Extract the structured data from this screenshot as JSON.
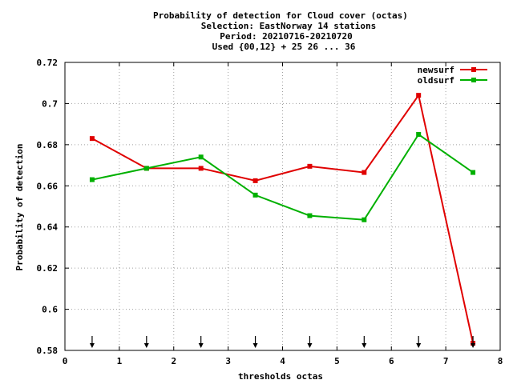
{
  "chart_data": {
    "type": "line",
    "title_lines": [
      "Probability of detection  for Cloud cover (octas)",
      "Selection: EastNorway     14 stations",
      "Period: 20210716-20210720",
      "Used {00,12} + 25 26 ... 36"
    ],
    "xlabel": "thresholds octas",
    "ylabel": "Probability of detection",
    "xlim": [
      0,
      8
    ],
    "ylim": [
      0.58,
      0.72
    ],
    "xticks": [
      "0",
      "1",
      "2",
      "3",
      "4",
      "5",
      "6",
      "7",
      "8"
    ],
    "yticks": [
      "0.58",
      "0.6",
      "0.62",
      "0.64",
      "0.66",
      "0.68",
      "0.7",
      "0.72"
    ],
    "grid": true,
    "legend_position": "top-right",
    "x": [
      0.5,
      1.5,
      2.5,
      3.5,
      4.5,
      5.5,
      6.5,
      7.5
    ],
    "series": [
      {
        "name": "newsurf",
        "color": "#e00000",
        "values": [
          0.683,
          0.6685,
          0.6685,
          0.6625,
          0.6695,
          0.6665,
          0.704,
          0.5835
        ]
      },
      {
        "name": "oldsurf",
        "color": "#00b000",
        "values": [
          0.663,
          0.6685,
          0.674,
          0.6555,
          0.6455,
          0.6435,
          0.685,
          0.6665
        ]
      }
    ],
    "arrow_markers_x": [
      0.5,
      1.5,
      2.5,
      3.5,
      4.5,
      5.5,
      6.5,
      7.5
    ]
  }
}
